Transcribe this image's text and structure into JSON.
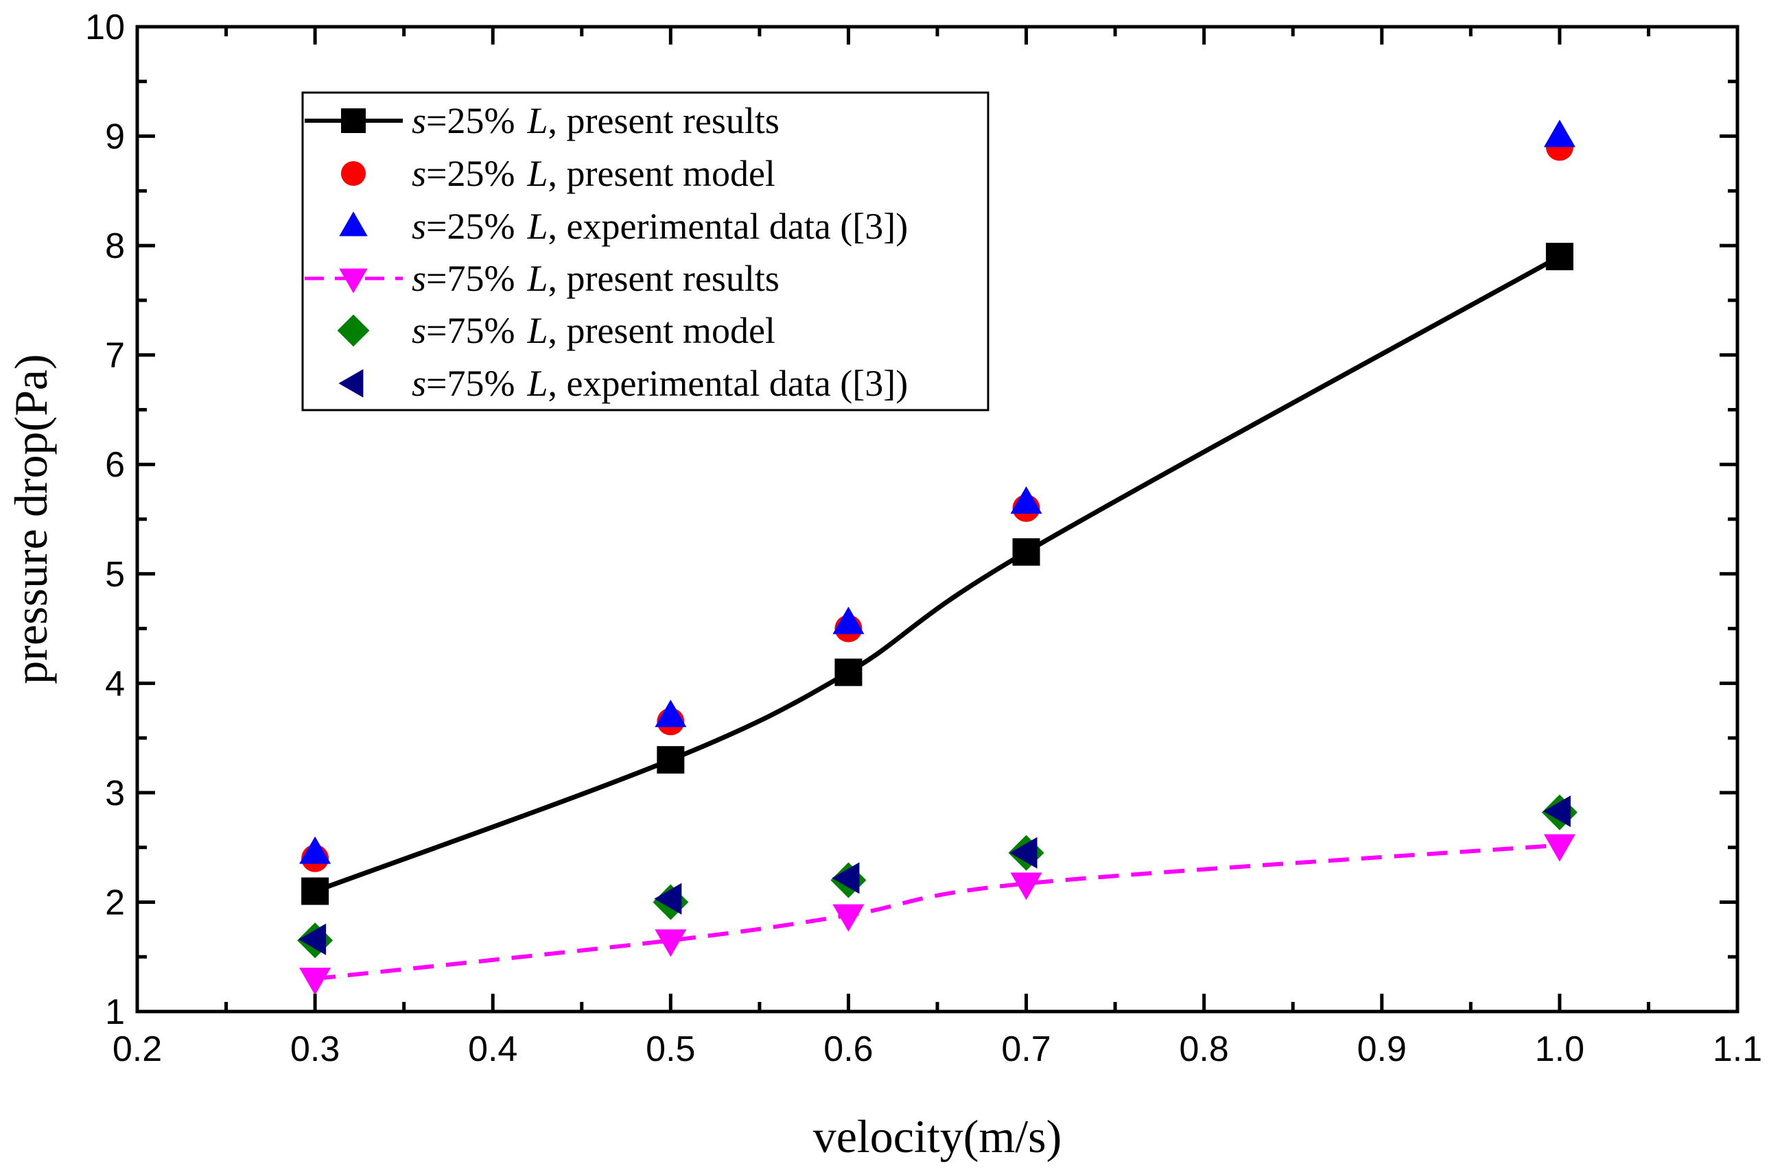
{
  "chart_data": {
    "type": "line",
    "title": "",
    "xlabel": "velocity(m/s)",
    "ylabel": "pressure drop(Pa)",
    "xlim": [
      0.2,
      1.1
    ],
    "ylim": [
      1,
      10
    ],
    "xticks": [
      "0.2",
      "0.3",
      "0.4",
      "0.5",
      "0.6",
      "0.7",
      "0.8",
      "0.9",
      "1.0",
      "1.1"
    ],
    "yticks": [
      "1",
      "2",
      "3",
      "4",
      "5",
      "6",
      "7",
      "8",
      "9",
      "10"
    ],
    "grid": false,
    "legend_position": "top-left",
    "x": [
      0.3,
      0.5,
      0.6,
      0.7,
      1.0
    ],
    "series": [
      {
        "name": "s=25% L, present results",
        "label": {
          "s": "s",
          "pct": "=25%",
          "L": "L",
          "desc": ", present results"
        },
        "marker": "square",
        "color": "#000000",
        "line": "solid",
        "values": [
          2.1,
          3.3,
          4.1,
          5.2,
          7.9
        ]
      },
      {
        "name": "s=25% L, present model",
        "label": {
          "s": "s",
          "pct": "=25%",
          "L": "L",
          "desc": ", present model"
        },
        "marker": "circle",
        "color": "#ff0000",
        "line": "none",
        "values": [
          2.4,
          3.65,
          4.5,
          5.6,
          8.9
        ]
      },
      {
        "name": "s=25% L, experimental data ([3])",
        "label": {
          "s": "s",
          "pct": "=25%",
          "L": "L",
          "desc": ", experimental data ([3])"
        },
        "marker": "triangle-up",
        "color": "#0000ff",
        "line": "none",
        "values": [
          2.45,
          3.7,
          4.55,
          5.65,
          9.0
        ]
      },
      {
        "name": "s=75% L, present results",
        "label": {
          "s": "s",
          "pct": "=75%",
          "L": "L",
          "desc": ", present results"
        },
        "marker": "triangle-down",
        "color": "#ff00ff",
        "line": "dash",
        "values": [
          1.3,
          1.65,
          1.88,
          2.17,
          2.52
        ]
      },
      {
        "name": "s=75% L, present model",
        "label": {
          "s": "s",
          "pct": "=75%",
          "L": "L",
          "desc": ", present model"
        },
        "marker": "diamond",
        "color": "#008000",
        "line": "none",
        "values": [
          1.65,
          2.0,
          2.2,
          2.45,
          2.82
        ]
      },
      {
        "name": "s=75% L, experimental data ([3])",
        "label": {
          "s": "s",
          "pct": "=75%",
          "L": "L",
          "desc": ", experimental data ([3])"
        },
        "marker": "triangle-left",
        "color": "#000080",
        "line": "none",
        "values": [
          1.66,
          2.03,
          2.22,
          2.45,
          2.83
        ]
      }
    ]
  }
}
